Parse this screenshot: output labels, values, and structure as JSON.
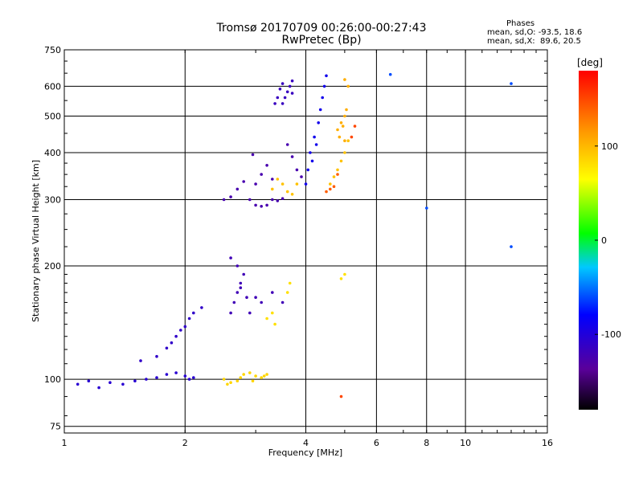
{
  "title": "Tromsø 20170709 00:26:00-00:27:43",
  "subtitle": "RwPretec (Bp)",
  "stats": {
    "heading": "Phases",
    "line_o": "mean, sd,O: -93.5, 18.6",
    "line_x": "mean, sd,X:  89.6, 20.5"
  },
  "colorbar": {
    "label": "[deg]",
    "ticks": [
      "100",
      "0",
      "-100"
    ],
    "tick_values": [
      100,
      0,
      -100
    ],
    "range": [
      -180,
      180
    ]
  },
  "chart_data": {
    "type": "scatter",
    "xlabel": "Frequency [MHz]",
    "ylabel": "Stationary phase Virtual Height [km]",
    "x_scale": "log",
    "y_scale": "log",
    "xlim": [
      1,
      16
    ],
    "ylim": [
      72,
      750
    ],
    "x_ticks": [
      1,
      2,
      4,
      6,
      8,
      10,
      16
    ],
    "x_tick_labels": [
      "1",
      "2",
      "4",
      "6",
      "8",
      "10",
      "16"
    ],
    "y_ticks": [
      75,
      100,
      200,
      300,
      400,
      500,
      600,
      750
    ],
    "y_tick_labels": [
      "75",
      "100",
      "200",
      "300",
      "400",
      "500",
      "600",
      "750"
    ],
    "grid": true,
    "series": [
      {
        "values": [
          [
            1.08,
            97
          ],
          [
            1.15,
            99
          ],
          [
            1.22,
            95
          ],
          [
            1.3,
            98
          ],
          [
            1.4,
            97
          ],
          [
            1.5,
            99
          ],
          [
            1.6,
            100
          ],
          [
            1.7,
            101
          ],
          [
            1.8,
            103
          ],
          [
            1.9,
            104
          ],
          [
            2.0,
            102
          ],
          [
            2.05,
            100
          ],
          [
            2.1,
            101
          ]
        ],
        "phase": -105
      },
      {
        "values": [
          [
            1.55,
            112
          ],
          [
            1.7,
            115
          ],
          [
            1.8,
            121
          ],
          [
            1.85,
            125
          ],
          [
            1.9,
            130
          ],
          [
            1.95,
            135
          ],
          [
            2.0,
            138
          ],
          [
            2.05,
            145
          ],
          [
            2.1,
            150
          ],
          [
            2.2,
            155
          ]
        ],
        "phase": -110
      },
      {
        "values": [
          [
            2.5,
            100
          ],
          [
            2.6,
            98
          ],
          [
            2.7,
            99
          ],
          [
            2.8,
            103
          ],
          [
            2.9,
            104
          ],
          [
            3.0,
            102
          ],
          [
            3.1,
            101
          ],
          [
            3.2,
            103
          ],
          [
            2.55,
            97
          ],
          [
            2.75,
            101
          ],
          [
            2.95,
            99
          ],
          [
            3.15,
            102
          ]
        ],
        "phase": 85
      },
      {
        "values": [
          [
            2.6,
            150
          ],
          [
            2.65,
            160
          ],
          [
            2.7,
            170
          ],
          [
            2.75,
            180
          ],
          [
            2.8,
            190
          ],
          [
            2.7,
            200
          ],
          [
            2.6,
            210
          ],
          [
            2.75,
            175
          ],
          [
            2.85,
            165
          ],
          [
            3.0,
            165
          ],
          [
            3.1,
            160
          ],
          [
            3.3,
            170
          ],
          [
            3.5,
            160
          ],
          [
            2.9,
            150
          ]
        ],
        "phase": -120
      },
      {
        "values": [
          [
            2.5,
            300
          ],
          [
            2.6,
            305
          ],
          [
            2.7,
            320
          ],
          [
            2.8,
            335
          ],
          [
            2.9,
            300
          ],
          [
            3.0,
            290
          ],
          [
            3.1,
            288
          ],
          [
            3.2,
            290
          ],
          [
            3.3,
            300
          ],
          [
            3.4,
            298
          ],
          [
            3.5,
            302
          ],
          [
            3.0,
            330
          ],
          [
            3.1,
            350
          ],
          [
            3.2,
            370
          ],
          [
            3.3,
            340
          ],
          [
            2.95,
            395
          ],
          [
            3.6,
            420
          ],
          [
            3.7,
            390
          ],
          [
            3.8,
            360
          ],
          [
            3.9,
            345
          ]
        ],
        "phase": -125
      },
      {
        "values": [
          [
            3.5,
            540
          ],
          [
            3.55,
            560
          ],
          [
            3.6,
            580
          ],
          [
            3.65,
            600
          ],
          [
            3.7,
            620
          ],
          [
            3.4,
            560
          ],
          [
            3.45,
            590
          ],
          [
            3.5,
            610
          ],
          [
            3.35,
            540
          ],
          [
            3.7,
            575
          ]
        ],
        "phase": -115
      },
      {
        "values": [
          [
            4.0,
            330
          ],
          [
            4.05,
            360
          ],
          [
            4.1,
            400
          ],
          [
            4.2,
            440
          ],
          [
            4.3,
            480
          ],
          [
            4.35,
            520
          ],
          [
            4.4,
            560
          ],
          [
            4.45,
            600
          ],
          [
            4.5,
            640
          ],
          [
            4.25,
            420
          ],
          [
            4.15,
            380
          ]
        ],
        "phase": -90
      },
      {
        "values": [
          [
            3.3,
            320
          ],
          [
            3.4,
            340
          ],
          [
            3.5,
            330
          ],
          [
            3.6,
            315
          ],
          [
            3.7,
            310
          ],
          [
            3.8,
            330
          ],
          [
            4.6,
            330
          ],
          [
            4.7,
            345
          ],
          [
            4.8,
            360
          ],
          [
            4.9,
            380
          ],
          [
            5.0,
            400
          ],
          [
            5.1,
            430
          ]
        ],
        "phase": 95
      },
      {
        "values": [
          [
            4.6,
            320
          ],
          [
            4.7,
            325
          ],
          [
            4.5,
            315
          ],
          [
            4.8,
            350
          ]
        ],
        "phase": 140
      },
      {
        "values": [
          [
            4.8,
            460
          ],
          [
            4.9,
            480
          ],
          [
            5.0,
            500
          ],
          [
            5.05,
            520
          ],
          [
            4.85,
            440
          ],
          [
            4.95,
            470
          ],
          [
            5.0,
            430
          ],
          [
            5.1,
            600
          ],
          [
            5.0,
            625
          ]
        ],
        "phase": 105
      },
      {
        "values": [
          [
            3.2,
            145
          ],
          [
            3.3,
            150
          ],
          [
            3.35,
            140
          ],
          [
            3.6,
            170
          ],
          [
            3.65,
            180
          ],
          [
            5.0,
            190
          ],
          [
            4.9,
            185
          ]
        ],
        "phase": 80
      },
      {
        "values": [
          [
            6.5,
            645
          ],
          [
            8.0,
            285
          ],
          [
            13.0,
            610
          ],
          [
            13.0,
            225
          ]
        ],
        "phase": -60
      },
      {
        "values": [
          [
            4.9,
            90
          ],
          [
            5.2,
            440
          ],
          [
            5.3,
            470
          ]
        ],
        "phase": 150
      }
    ]
  }
}
